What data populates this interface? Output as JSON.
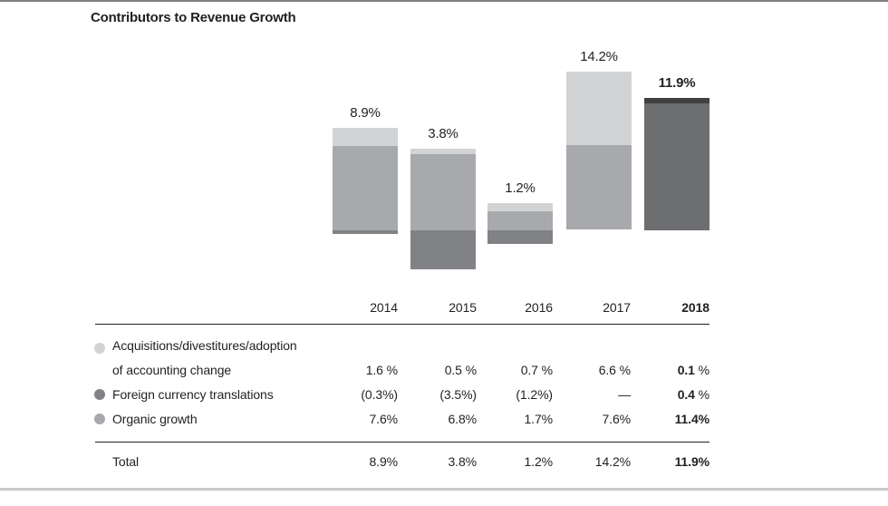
{
  "title": "Contributors to Revenue Growth",
  "colors": {
    "acquisitions": "#d1d3d4",
    "foreign_currency": "#808285",
    "organic": "#a7a9ac",
    "highlight_body": "#6d6e70",
    "highlight_cap": "#414042",
    "text": "#231f20",
    "rule": "#231f20",
    "top_border": "#7f7f7f",
    "bottom_border": "#c7c9cb"
  },
  "chart_data": {
    "type": "bar",
    "stacked": true,
    "title": "Contributors to Revenue Growth",
    "categories": [
      "2014",
      "2015",
      "2016",
      "2017",
      "2018"
    ],
    "series": [
      {
        "name": "Acquisitions/divestitures/adoption of accounting change",
        "color_key": "acquisitions",
        "values": [
          1.6,
          0.5,
          0.7,
          6.6,
          0.1
        ]
      },
      {
        "name": "Foreign currency translations",
        "color_key": "foreign_currency",
        "values": [
          -0.3,
          -3.5,
          -1.2,
          0,
          0.4
        ]
      },
      {
        "name": "Organic growth",
        "color_key": "organic",
        "values": [
          7.6,
          6.8,
          1.7,
          7.6,
          11.4
        ]
      }
    ],
    "totals": [
      8.9,
      3.8,
      1.2,
      14.2,
      11.9
    ],
    "total_labels": [
      "8.9%",
      "3.8%",
      "1.2%",
      "14.2%",
      "11.9%"
    ],
    "highlight_category": "2018",
    "axes": "none",
    "grid": false,
    "legend_position": "table-left"
  },
  "table": {
    "header_years": [
      "2014",
      "2015",
      "2016",
      "2017",
      "2018"
    ],
    "rows": [
      {
        "legend": "acquisitions",
        "label_lines": [
          "Acquisitions/divestitures/adoption",
          "of accounting change"
        ],
        "values": [
          "1.6 %",
          "0.5 %",
          "0.7 %",
          "6.6 %",
          "0.1 %"
        ]
      },
      {
        "legend": "foreign_currency",
        "label_lines": [
          "Foreign currency translations"
        ],
        "values": [
          "(0.3%)",
          "(3.5%)",
          "(1.2%)",
          "—",
          "0.4 %"
        ]
      },
      {
        "legend": "organic",
        "label_lines": [
          "Organic growth"
        ],
        "values": [
          "7.6%",
          "6.8%",
          "1.7%",
          "7.6%",
          "11.4%"
        ]
      }
    ],
    "total_row": {
      "label": "Total",
      "values": [
        "8.9%",
        "3.8%",
        "1.2%",
        "14.2%",
        "11.9%"
      ]
    }
  }
}
